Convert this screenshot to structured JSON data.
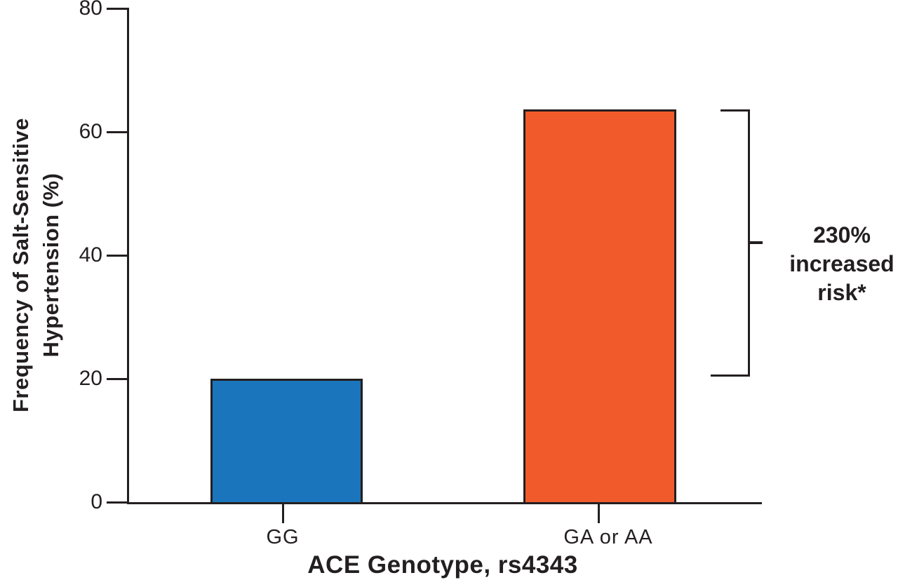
{
  "chart_data": {
    "type": "bar",
    "title": "",
    "xlabel": "ACE Genotype, rs4343",
    "ylabel": "Frequency of Salt-Sensitive Hypertension (%)",
    "ylabel_lines": [
      "Frequency of Salt-Sensitive",
      "Hypertension (%)"
    ],
    "categories": [
      "GG",
      "GA or AA"
    ],
    "values": [
      20,
      63.6
    ],
    "yticks": [
      0,
      20,
      40,
      60,
      80
    ],
    "ylim": [
      0,
      80
    ],
    "grid": "off",
    "bar_colors": [
      "#1b75bc",
      "#f15b2b"
    ],
    "bar_border_color": "#231f20",
    "axis_color": "#231f20",
    "annotation": {
      "lines": [
        "230%",
        "increased",
        "risk*"
      ],
      "text": "230% increased risk*"
    }
  }
}
